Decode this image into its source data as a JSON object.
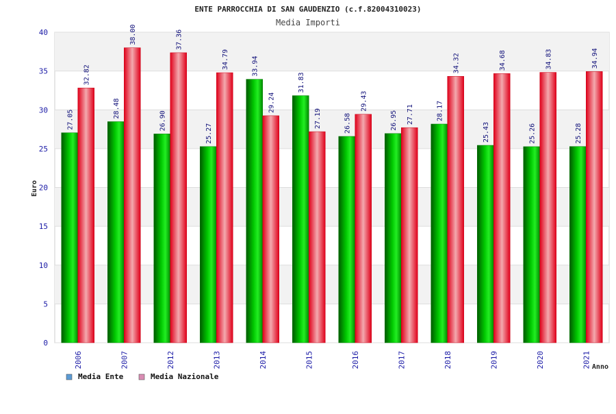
{
  "chart_data": {
    "type": "bar",
    "title": "ENTE PARROCCHIA DI SAN GAUDENZIO (c.f.82004310023)",
    "subtitle": "Media Importi",
    "xlabel": "Anno",
    "ylabel": "Euro",
    "ylim": [
      0,
      40
    ],
    "yticks": [
      0,
      5,
      10,
      15,
      20,
      25,
      30,
      35,
      40
    ],
    "grid": true,
    "legend_position": "bottom-left",
    "categories": [
      "2006",
      "2007",
      "2012",
      "2013",
      "2014",
      "2015",
      "2016",
      "2017",
      "2018",
      "2019",
      "2020",
      "2021"
    ],
    "series": [
      {
        "name": "Media Ente",
        "values": [
          27.05,
          28.48,
          26.9,
          25.27,
          33.94,
          31.83,
          26.58,
          26.95,
          28.17,
          25.43,
          25.26,
          25.28
        ],
        "labels": [
          "27.05",
          "28.48",
          "26.90",
          "25.27",
          "33.94",
          "31.83",
          "26.58",
          "26.95",
          "28.17",
          "25.43",
          "25.26",
          "25.28"
        ],
        "color": "#00b400",
        "legend_color": "#5b9bd5"
      },
      {
        "name": "Media Nazionale",
        "values": [
          32.82,
          38.0,
          37.36,
          34.79,
          29.24,
          27.19,
          29.43,
          27.71,
          34.32,
          34.68,
          34.83,
          34.94
        ],
        "labels": [
          "32.82",
          "38.00",
          "37.36",
          "34.79",
          "29.24",
          "27.19",
          "29.43",
          "27.71",
          "34.32",
          "34.68",
          "34.83",
          "34.94"
        ],
        "color": "#ff0a1e",
        "legend_color": "#d98cb3"
      }
    ]
  }
}
